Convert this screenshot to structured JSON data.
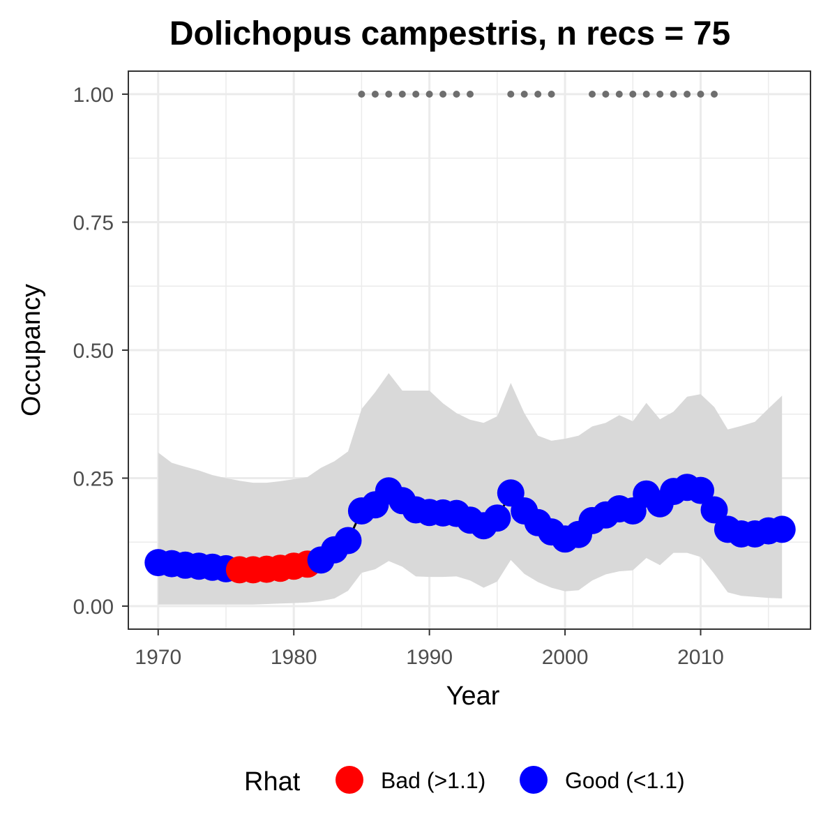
{
  "chart_data": {
    "type": "line",
    "title": "Dolichopus campestris, n recs = 75",
    "xlabel": "Year",
    "ylabel": "Occupancy",
    "xlim": [
      1967.8,
      2018.1
    ],
    "ylim": [
      -0.045,
      1.045
    ],
    "x_ticks": [
      1970,
      1980,
      1990,
      2000,
      2010
    ],
    "x_tick_labels": [
      "1970",
      "1980",
      "1990",
      "2000",
      "2010"
    ],
    "y_ticks": [
      0,
      0.25,
      0.5,
      0.75,
      1.0
    ],
    "y_tick_labels": [
      "0.00",
      "0.25",
      "0.50",
      "0.75",
      "1.00"
    ],
    "grid": true,
    "legend": {
      "title": "Rhat",
      "position": "bottom",
      "items": [
        {
          "label": "Bad (>1.1)",
          "color": "#ff0000"
        },
        {
          "label": "Good (<1.1)",
          "color": "#0000ff"
        }
      ]
    },
    "colors": {
      "bad": "#ff0000",
      "good": "#0000ff",
      "ribbon": "#d9d9d9",
      "line": "#000000",
      "record_dots": "#6e6e6e",
      "panel_border": "#333333",
      "grid": "#ebebeb"
    },
    "series": [
      {
        "year": 1970,
        "mean": 0.085,
        "lower": 0.003,
        "upper": 0.3,
        "rhat": "good"
      },
      {
        "year": 1971,
        "mean": 0.083,
        "lower": 0.003,
        "upper": 0.28,
        "rhat": "good"
      },
      {
        "year": 1972,
        "mean": 0.08,
        "lower": 0.003,
        "upper": 0.272,
        "rhat": "good"
      },
      {
        "year": 1973,
        "mean": 0.078,
        "lower": 0.003,
        "upper": 0.265,
        "rhat": "good"
      },
      {
        "year": 1974,
        "mean": 0.076,
        "lower": 0.003,
        "upper": 0.256,
        "rhat": "good"
      },
      {
        "year": 1975,
        "mean": 0.073,
        "lower": 0.003,
        "upper": 0.25,
        "rhat": "good"
      },
      {
        "year": 1976,
        "mean": 0.071,
        "lower": 0.003,
        "upper": 0.245,
        "rhat": "bad"
      },
      {
        "year": 1977,
        "mean": 0.071,
        "lower": 0.003,
        "upper": 0.241,
        "rhat": "bad"
      },
      {
        "year": 1978,
        "mean": 0.072,
        "lower": 0.004,
        "upper": 0.241,
        "rhat": "bad"
      },
      {
        "year": 1979,
        "mean": 0.074,
        "lower": 0.005,
        "upper": 0.244,
        "rhat": "bad"
      },
      {
        "year": 1980,
        "mean": 0.078,
        "lower": 0.006,
        "upper": 0.248,
        "rhat": "bad"
      },
      {
        "year": 1981,
        "mean": 0.082,
        "lower": 0.007,
        "upper": 0.252,
        "rhat": "bad"
      },
      {
        "year": 1982,
        "mean": 0.09,
        "lower": 0.01,
        "upper": 0.27,
        "rhat": "good"
      },
      {
        "year": 1983,
        "mean": 0.11,
        "lower": 0.015,
        "upper": 0.283,
        "rhat": "good"
      },
      {
        "year": 1984,
        "mean": 0.128,
        "lower": 0.03,
        "upper": 0.302,
        "rhat": "good"
      },
      {
        "year": 1985,
        "mean": 0.186,
        "lower": 0.065,
        "upper": 0.385,
        "rhat": "good"
      },
      {
        "year": 1986,
        "mean": 0.198,
        "lower": 0.072,
        "upper": 0.418,
        "rhat": "good"
      },
      {
        "year": 1987,
        "mean": 0.225,
        "lower": 0.088,
        "upper": 0.455,
        "rhat": "good"
      },
      {
        "year": 1988,
        "mean": 0.206,
        "lower": 0.077,
        "upper": 0.421,
        "rhat": "good"
      },
      {
        "year": 1989,
        "mean": 0.188,
        "lower": 0.058,
        "upper": 0.421,
        "rhat": "good"
      },
      {
        "year": 1990,
        "mean": 0.183,
        "lower": 0.057,
        "upper": 0.421,
        "rhat": "good"
      },
      {
        "year": 1991,
        "mean": 0.182,
        "lower": 0.057,
        "upper": 0.396,
        "rhat": "good"
      },
      {
        "year": 1992,
        "mean": 0.181,
        "lower": 0.058,
        "upper": 0.377,
        "rhat": "good"
      },
      {
        "year": 1993,
        "mean": 0.168,
        "lower": 0.05,
        "upper": 0.364,
        "rhat": "good"
      },
      {
        "year": 1994,
        "mean": 0.157,
        "lower": 0.036,
        "upper": 0.358,
        "rhat": "good"
      },
      {
        "year": 1995,
        "mean": 0.172,
        "lower": 0.048,
        "upper": 0.371,
        "rhat": "good"
      },
      {
        "year": 1996,
        "mean": 0.221,
        "lower": 0.09,
        "upper": 0.436,
        "rhat": "good"
      },
      {
        "year": 1997,
        "mean": 0.186,
        "lower": 0.063,
        "upper": 0.377,
        "rhat": "good"
      },
      {
        "year": 1998,
        "mean": 0.163,
        "lower": 0.047,
        "upper": 0.333,
        "rhat": "good"
      },
      {
        "year": 1999,
        "mean": 0.145,
        "lower": 0.036,
        "upper": 0.323,
        "rhat": "good"
      },
      {
        "year": 2000,
        "mean": 0.131,
        "lower": 0.029,
        "upper": 0.327,
        "rhat": "good"
      },
      {
        "year": 2001,
        "mean": 0.14,
        "lower": 0.031,
        "upper": 0.333,
        "rhat": "good"
      },
      {
        "year": 2002,
        "mean": 0.167,
        "lower": 0.05,
        "upper": 0.351,
        "rhat": "good"
      },
      {
        "year": 2003,
        "mean": 0.178,
        "lower": 0.062,
        "upper": 0.358,
        "rhat": "good"
      },
      {
        "year": 2004,
        "mean": 0.19,
        "lower": 0.068,
        "upper": 0.373,
        "rhat": "good"
      },
      {
        "year": 2005,
        "mean": 0.186,
        "lower": 0.07,
        "upper": 0.361,
        "rhat": "good"
      },
      {
        "year": 2006,
        "mean": 0.219,
        "lower": 0.094,
        "upper": 0.397,
        "rhat": "good"
      },
      {
        "year": 2007,
        "mean": 0.2,
        "lower": 0.08,
        "upper": 0.365,
        "rhat": "good"
      },
      {
        "year": 2008,
        "mean": 0.224,
        "lower": 0.104,
        "upper": 0.38,
        "rhat": "good"
      },
      {
        "year": 2009,
        "mean": 0.232,
        "lower": 0.104,
        "upper": 0.409,
        "rhat": "good"
      },
      {
        "year": 2010,
        "mean": 0.226,
        "lower": 0.096,
        "upper": 0.414,
        "rhat": "good"
      },
      {
        "year": 2011,
        "mean": 0.188,
        "lower": 0.063,
        "upper": 0.389,
        "rhat": "good"
      },
      {
        "year": 2012,
        "mean": 0.15,
        "lower": 0.027,
        "upper": 0.345,
        "rhat": "good"
      },
      {
        "year": 2013,
        "mean": 0.141,
        "lower": 0.02,
        "upper": 0.352,
        "rhat": "good"
      },
      {
        "year": 2014,
        "mean": 0.141,
        "lower": 0.018,
        "upper": 0.36,
        "rhat": "good"
      },
      {
        "year": 2015,
        "mean": 0.147,
        "lower": 0.016,
        "upper": 0.386,
        "rhat": "good"
      },
      {
        "year": 2016,
        "mean": 0.15,
        "lower": 0.015,
        "upper": 0.411,
        "rhat": "good"
      }
    ],
    "record_years": [
      1985,
      1986,
      1987,
      1988,
      1989,
      1990,
      1991,
      1992,
      1993,
      1996,
      1997,
      1998,
      1999,
      2002,
      2003,
      2004,
      2005,
      2006,
      2007,
      2008,
      2009,
      2010,
      2011
    ],
    "record_y": 1.0
  }
}
